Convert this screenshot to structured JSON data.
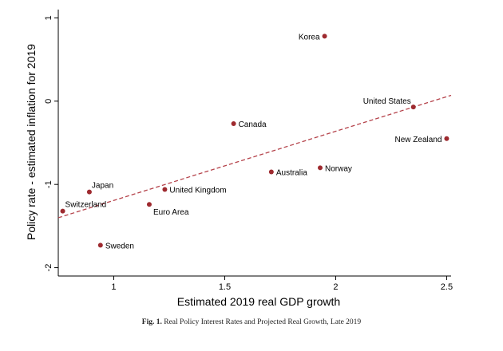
{
  "chart_data": {
    "type": "scatter",
    "xlabel": "Estimated 2019 real GDP growth",
    "ylabel": "Policy rate - estimated inflation for 2019",
    "xlim": [
      0.75,
      2.52
    ],
    "ylim": [
      -2.1,
      1.1
    ],
    "xticks": [
      1,
      1.5,
      2,
      2.5
    ],
    "xtick_labels": [
      "1",
      "1.5",
      "2",
      "2.5"
    ],
    "yticks": [
      -2,
      -1,
      0,
      1
    ],
    "ytick_labels": [
      "-2",
      "-1",
      "0",
      "1"
    ],
    "grid": false,
    "legend": "none",
    "points": [
      {
        "label": "Korea",
        "x": 1.95,
        "y": 0.78,
        "label_side": "left"
      },
      {
        "label": "United States",
        "x": 2.35,
        "y": -0.07,
        "label_side": "above-left"
      },
      {
        "label": "Canada",
        "x": 1.54,
        "y": -0.27,
        "label_side": "right"
      },
      {
        "label": "New Zealand",
        "x": 2.5,
        "y": -0.45,
        "label_side": "left"
      },
      {
        "label": "Australia",
        "x": 1.71,
        "y": -0.85,
        "label_side": "right"
      },
      {
        "label": "Norway",
        "x": 1.93,
        "y": -0.8,
        "label_side": "right"
      },
      {
        "label": "Japan",
        "x": 0.89,
        "y": -1.09,
        "label_side": "above-right"
      },
      {
        "label": "United Kingdom",
        "x": 1.23,
        "y": -1.06,
        "label_side": "right"
      },
      {
        "label": "Switzerland",
        "x": 0.77,
        "y": -1.32,
        "label_side": "above-right"
      },
      {
        "label": "Euro Area",
        "x": 1.16,
        "y": -1.24,
        "label_side": "below-right"
      },
      {
        "label": "Sweden",
        "x": 0.94,
        "y": -1.73,
        "label_side": "right"
      }
    ],
    "fit_line": {
      "style": "dashed",
      "x": [
        0.75,
        2.52
      ],
      "y": [
        -1.4,
        0.07
      ]
    },
    "colors": {
      "marker": "#9e2a2f",
      "fit_line": "#b5434b",
      "axis": "#000000"
    }
  },
  "caption": {
    "label": "Fig. 1.",
    "text": "Real Policy Interest Rates and Projected Real Growth, Late 2019"
  }
}
